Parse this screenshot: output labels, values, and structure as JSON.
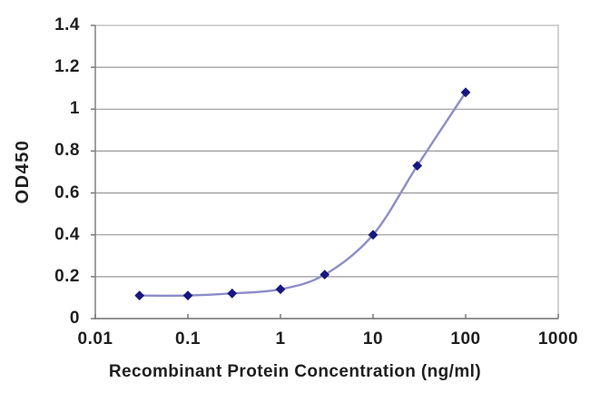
{
  "figure": {
    "background": "#ffffff"
  },
  "chart_data": {
    "type": "line",
    "title": "",
    "xlabel": "Recombinant Protein Concentration (ng/ml)",
    "ylabel": "OD450",
    "x_scale": "log",
    "x": [
      0.03,
      0.1,
      0.3,
      1,
      3,
      10,
      30,
      100
    ],
    "y": [
      0.11,
      0.11,
      0.12,
      0.14,
      0.21,
      0.4,
      0.73,
      1.08
    ],
    "xlim": [
      0.01,
      1000
    ],
    "ylim": [
      0,
      1.4
    ],
    "x_tick_values": [
      0.01,
      0.1,
      1,
      10,
      100,
      1000
    ],
    "x_tick_labels": [
      "0.01",
      "0.1",
      "1",
      "10",
      "100",
      "1000"
    ],
    "y_tick_values": [
      0,
      0.2,
      0.4,
      0.6,
      0.8,
      1,
      1.2,
      1.4
    ],
    "y_tick_labels": [
      "0",
      "0.2",
      "0.4",
      "0.6",
      "0.8",
      "1",
      "1.2",
      "1.4"
    ],
    "grid": "horizontal",
    "legend": "none",
    "marker_shape": "diamond",
    "line_style": "smooth",
    "colors": {
      "line": "#8c8cc8",
      "marker": "#17177e",
      "gridline": "#999999",
      "axis_border": "#b3b3b3",
      "axis_line": "#858585",
      "tick": "#777777",
      "text": "#1f1f1f"
    }
  }
}
